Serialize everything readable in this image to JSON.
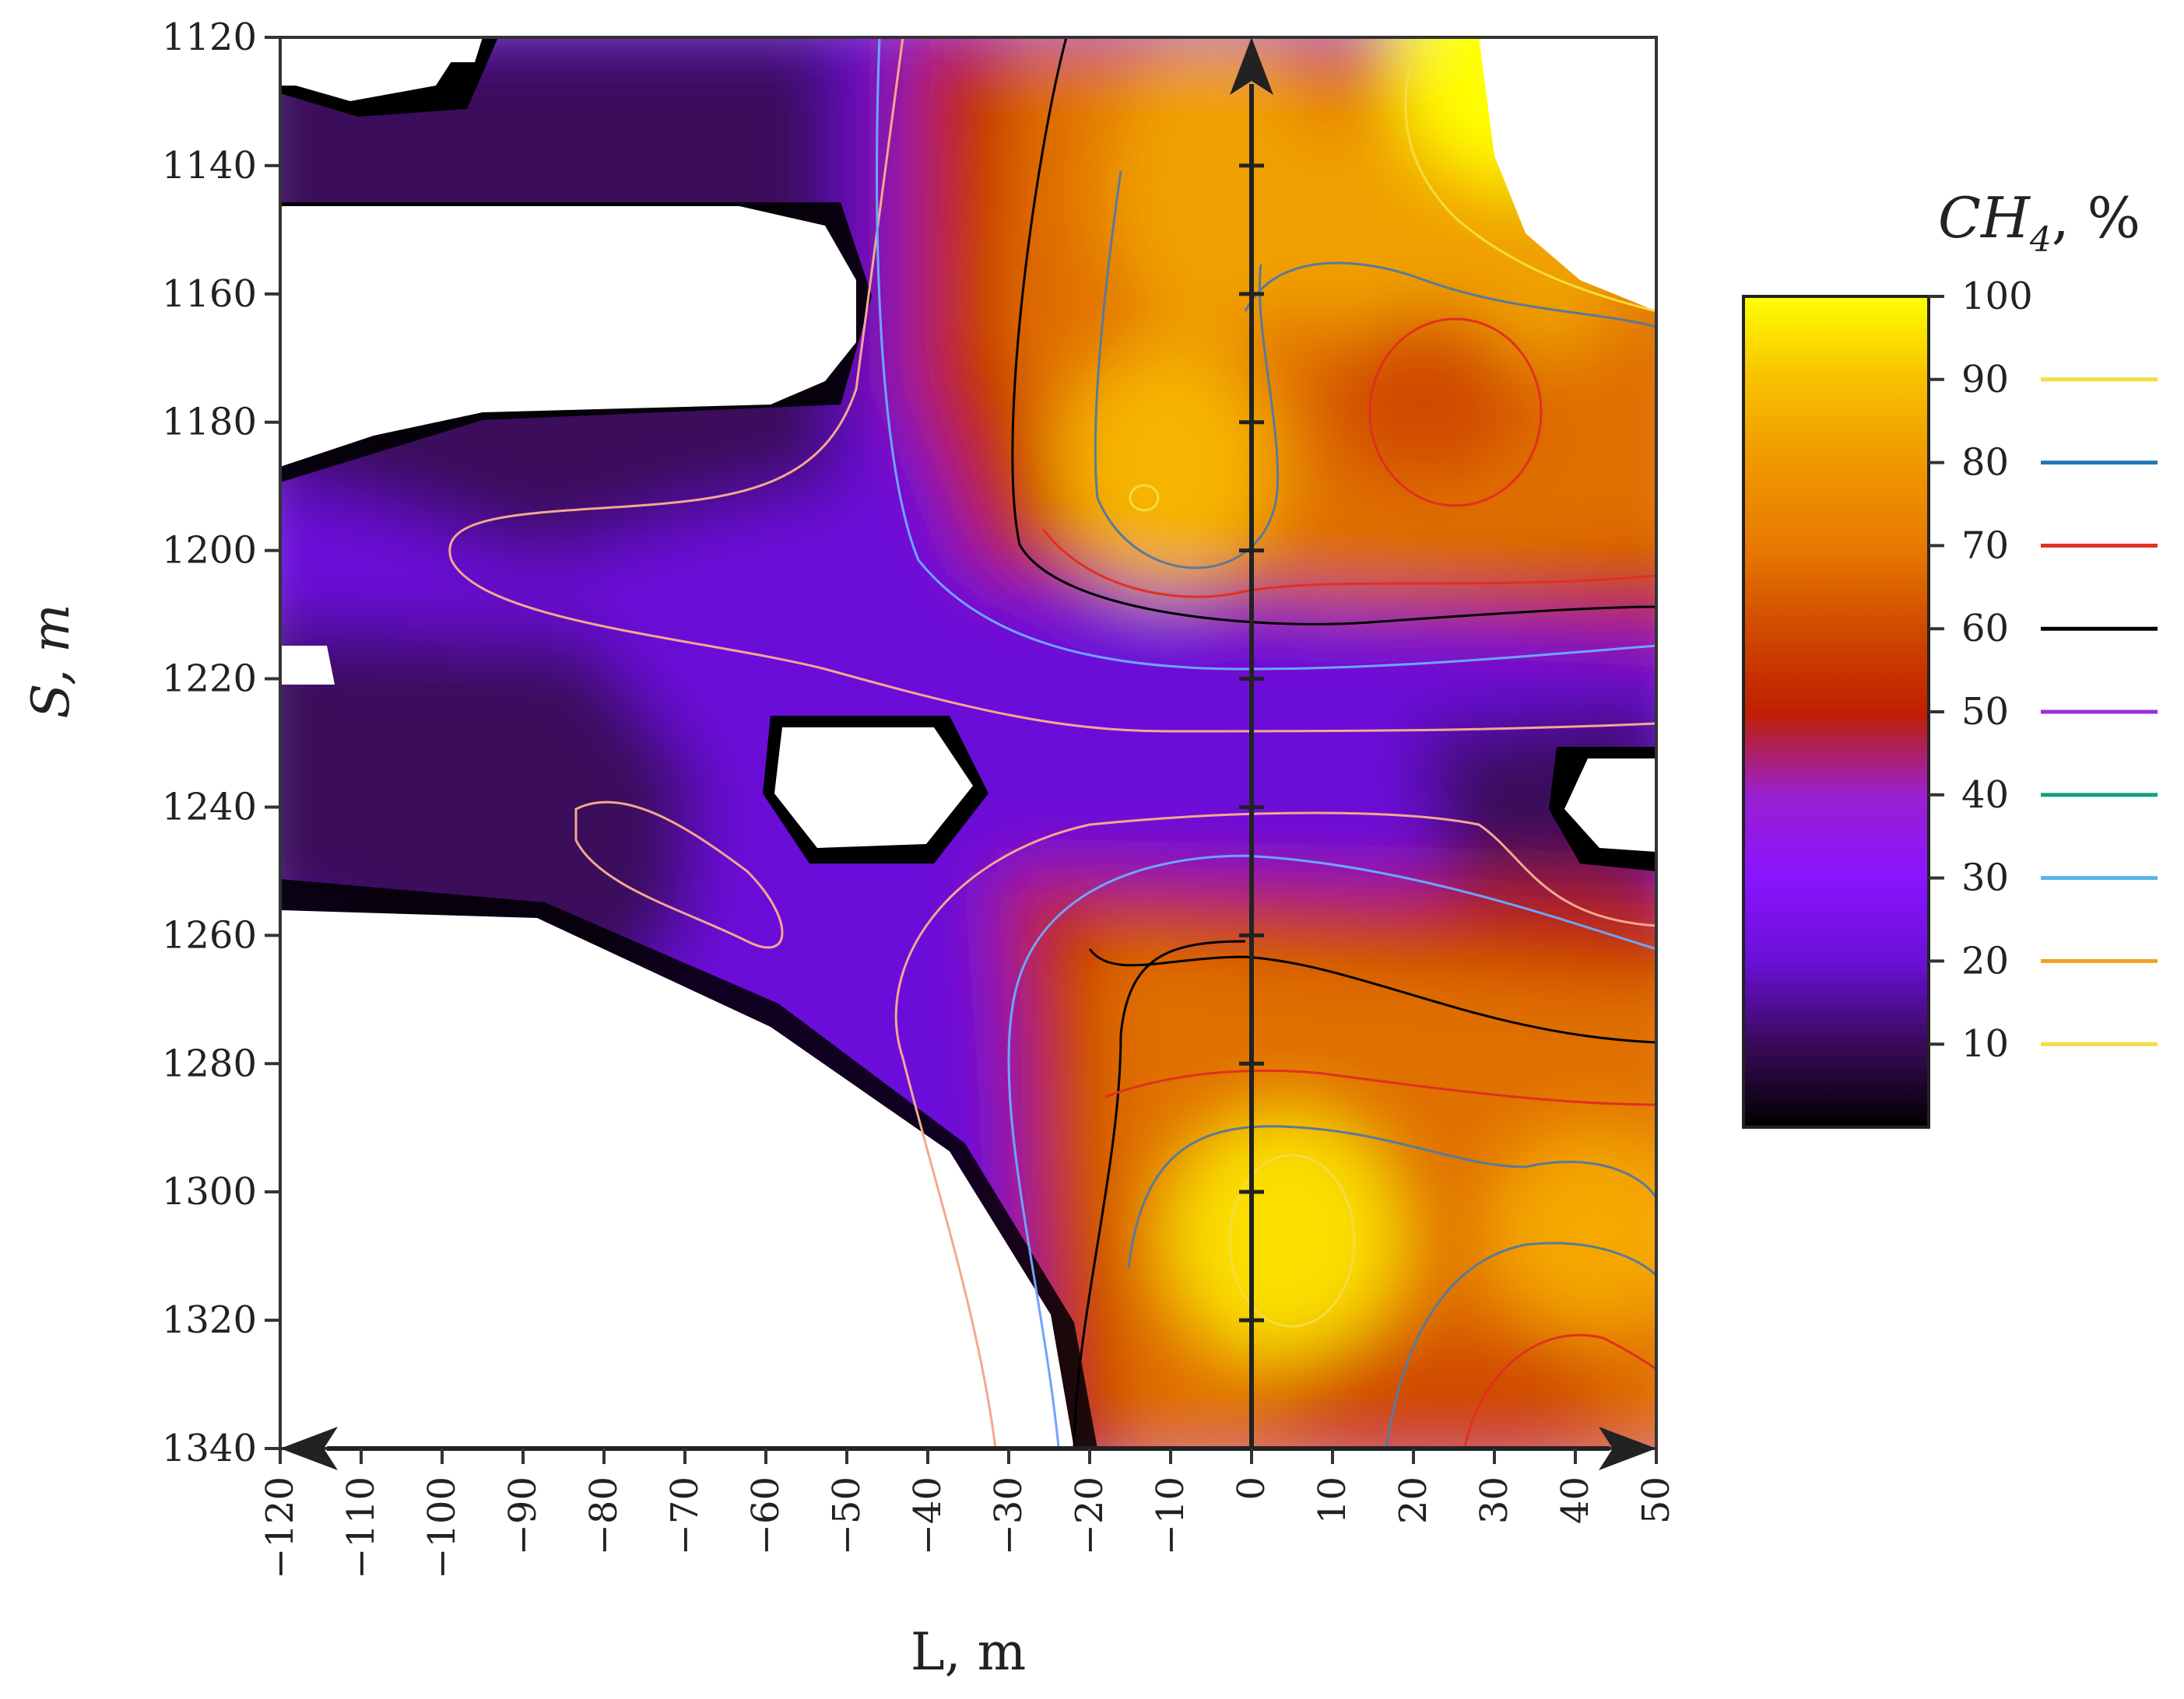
{
  "chart_data": {
    "type": "heatmap",
    "title": "",
    "xlabel": "L, m",
    "ylabel": "S, m",
    "x_ticks": [
      -120,
      -110,
      -100,
      -90,
      -80,
      -70,
      -60,
      -50,
      -40,
      -30,
      -20,
      -10,
      0,
      10,
      20,
      30,
      40,
      50
    ],
    "y_ticks": [
      1120,
      1140,
      1160,
      1180,
      1200,
      1220,
      1240,
      1260,
      1280,
      1300,
      1320,
      1340
    ],
    "xlim": [
      -120,
      50
    ],
    "ylim": [
      1340,
      1120
    ],
    "y_inverted": true,
    "colorbar": {
      "title_main": "CH",
      "title_sub": "4",
      "title_suffix": ", %",
      "range": [
        0,
        100
      ],
      "ticks": [
        100,
        90,
        80,
        70,
        60,
        50,
        40,
        30,
        20,
        10
      ],
      "gradient": [
        {
          "v": 0,
          "color": "#000000"
        },
        {
          "v": 10,
          "color": "#3a0a5a"
        },
        {
          "v": 20,
          "color": "#6a10d8"
        },
        {
          "v": 30,
          "color": "#8a14ff"
        },
        {
          "v": 40,
          "color": "#9a20d0"
        },
        {
          "v": 50,
          "color": "#c02000"
        },
        {
          "v": 60,
          "color": "#d04a00"
        },
        {
          "v": 70,
          "color": "#e87a00"
        },
        {
          "v": 80,
          "color": "#f09800"
        },
        {
          "v": 90,
          "color": "#f8c000"
        },
        {
          "v": 100,
          "color": "#ffff00"
        }
      ]
    },
    "contour_legend": [
      {
        "level": 90,
        "color": "#f5dc40"
      },
      {
        "level": 80,
        "color": "#1f77b4"
      },
      {
        "level": 70,
        "color": "#e03020"
      },
      {
        "level": 60,
        "color": "#000000"
      },
      {
        "level": 50,
        "color": "#9b2fd8"
      },
      {
        "level": 40,
        "color": "#14a080"
      },
      {
        "level": 30,
        "color": "#5bb4e5"
      },
      {
        "level": 20,
        "color": "#f0a020"
      },
      {
        "level": 10,
        "color": "#f5dc40"
      }
    ],
    "arrows": [
      {
        "from": [
          0,
          1340
        ],
        "to": [
          0,
          1120
        ]
      },
      {
        "from": [
          -120,
          1340
        ],
        "to": [
          50,
          1340
        ],
        "double_headed": true
      }
    ]
  }
}
